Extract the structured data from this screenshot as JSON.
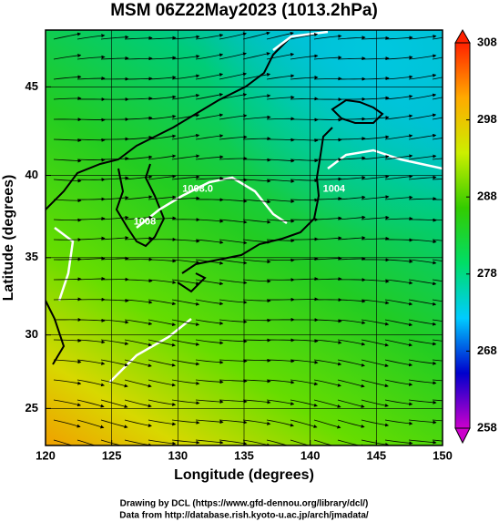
{
  "chart_data": {
    "type": "map",
    "title": "MSM 06Z22May2023 (1013.2hPa)",
    "x_label": "Longitude (degrees)",
    "y_label": "Latitude  (degrees)",
    "xlim": [
      120,
      150
    ],
    "xticks": [
      120,
      125,
      130,
      135,
      140,
      145,
      150
    ],
    "ylim": [
      22.4,
      48.0
    ],
    "yticks": [
      25,
      30,
      35,
      40,
      45
    ],
    "y_projection": "mercator",
    "colorbar": {
      "clim": [
        258,
        308
      ],
      "ticks": [
        258,
        268,
        278,
        288,
        298,
        308
      ],
      "colors": [
        "#cc00cc",
        "#0000cc",
        "#00ccff",
        "#00dd66",
        "#33cc00",
        "#ccee00",
        "#ffaa00",
        "#ff2200"
      ]
    },
    "contour_labels": [
      {
        "text": "1008.0",
        "lon": 131.5,
        "lat": 39.2
      },
      {
        "text": "1004",
        "lon": 141.8,
        "lat": 39.2
      },
      {
        "text": "1008",
        "lon": 127.5,
        "lat": 37.2
      }
    ],
    "credits": [
      "Drawing by DCL (https://www.gfd-dennou.org/library/dcl/)",
      "Data from http://database.rish.kyoto-u.ac.jp/arch/jmadata/"
    ]
  }
}
